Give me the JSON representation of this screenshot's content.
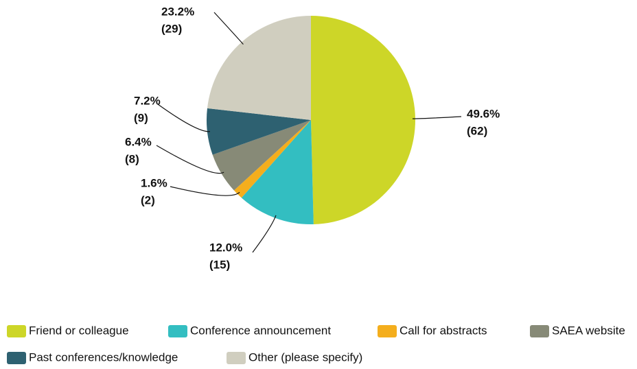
{
  "chart_data": {
    "type": "pie",
    "categories": [
      "Friend or colleague",
      "Conference announcement",
      "Call for abstracts",
      "SAEA website",
      "Past conferences/knowledge",
      "Other (please specify)"
    ],
    "values": [
      49.6,
      12.0,
      1.6,
      6.4,
      7.2,
      23.2
    ],
    "value_labels": [
      "49.6%",
      "12.0%",
      "1.6%",
      "6.4%",
      "7.2%",
      "23.2%"
    ],
    "counts": [
      62,
      15,
      2,
      8,
      9,
      29
    ],
    "count_labels": [
      "(62)",
      "(15)",
      "(2)",
      "(8)",
      "(9)",
      "(29)"
    ],
    "colors": [
      "#cdd628",
      "#33bec1",
      "#f4ae1d",
      "#878a77",
      "#2e6171",
      "#d0cebf"
    ],
    "legend": "bottom"
  }
}
